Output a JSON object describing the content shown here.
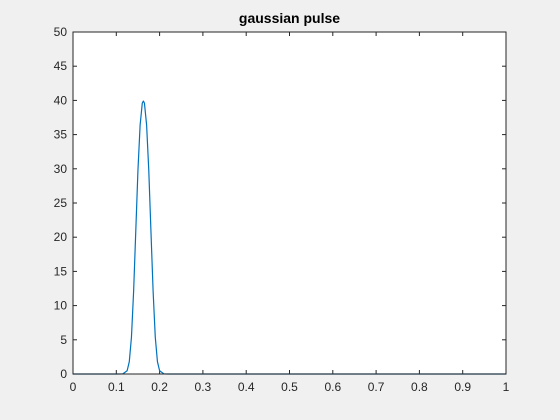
{
  "chart_data": {
    "type": "line",
    "title": "gaussian pulse",
    "xlabel": "",
    "ylabel": "",
    "xlim": [
      0,
      1
    ],
    "ylim": [
      0,
      50
    ],
    "xticks": [
      "0",
      "0.1",
      "0.2",
      "0.3",
      "0.4",
      "0.5",
      "0.6",
      "0.7",
      "0.8",
      "0.9",
      "1"
    ],
    "yticks": [
      "0",
      "5",
      "10",
      "15",
      "20",
      "25",
      "30",
      "35",
      "40",
      "45",
      "50"
    ],
    "grid": false,
    "legend": "none",
    "series": [
      {
        "color": "#0072bd",
        "x": [
          0,
          0.1,
          0.115,
          0.125,
          0.13,
          0.135,
          0.14,
          0.145,
          0.15,
          0.155,
          0.16,
          0.1625,
          0.165,
          0.17,
          0.175,
          0.18,
          0.185,
          0.19,
          0.195,
          0.2,
          0.21,
          0.22,
          1.0
        ],
        "values": [
          0,
          0,
          0.02,
          0.47,
          1.8,
          5.4,
          12.1,
          20.9,
          29.8,
          36.4,
          39.6,
          39.9,
          39.6,
          36.4,
          29.8,
          20.9,
          12.1,
          5.4,
          1.8,
          0.47,
          0.02,
          0,
          0
        ]
      }
    ]
  }
}
